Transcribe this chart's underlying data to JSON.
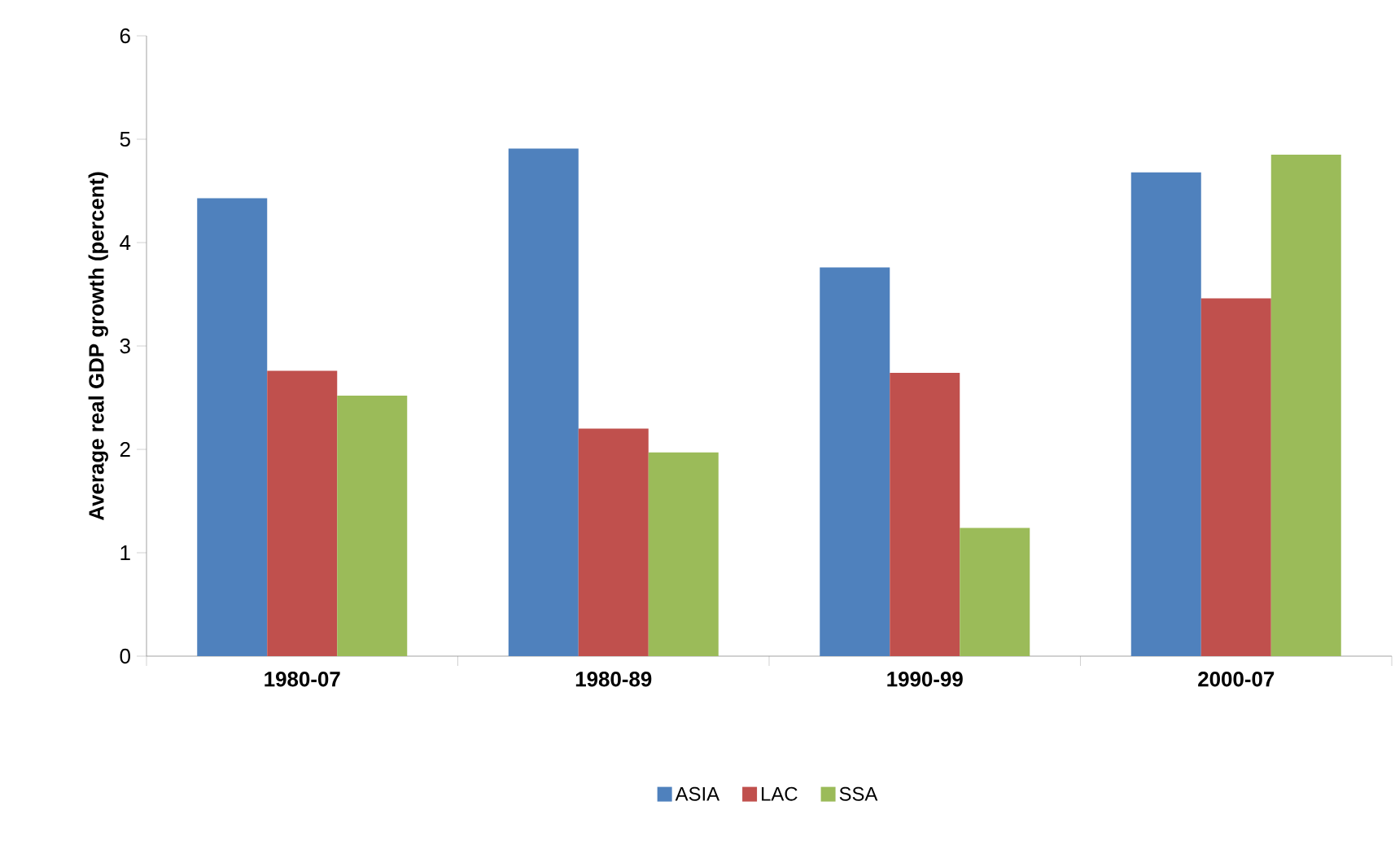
{
  "chart_data": {
    "type": "bar",
    "ylabel": "Average real GDP growth (percent)",
    "categories": [
      "1980-07",
      "1980-89",
      "1990-99",
      "2000-07"
    ],
    "series": [
      {
        "name": "ASIA",
        "color": "#4f81bd",
        "values": [
          4.43,
          4.91,
          3.76,
          4.68
        ]
      },
      {
        "name": "LAC",
        "color": "#c0504d",
        "values": [
          2.76,
          2.2,
          2.74,
          3.46
        ]
      },
      {
        "name": "SSA",
        "color": "#9bbb59",
        "values": [
          2.52,
          1.97,
          1.24,
          4.85
        ]
      }
    ],
    "ylim": [
      0,
      6
    ],
    "yticks": [
      0,
      1,
      2,
      3,
      4,
      5,
      6
    ],
    "legend": "bottom"
  }
}
